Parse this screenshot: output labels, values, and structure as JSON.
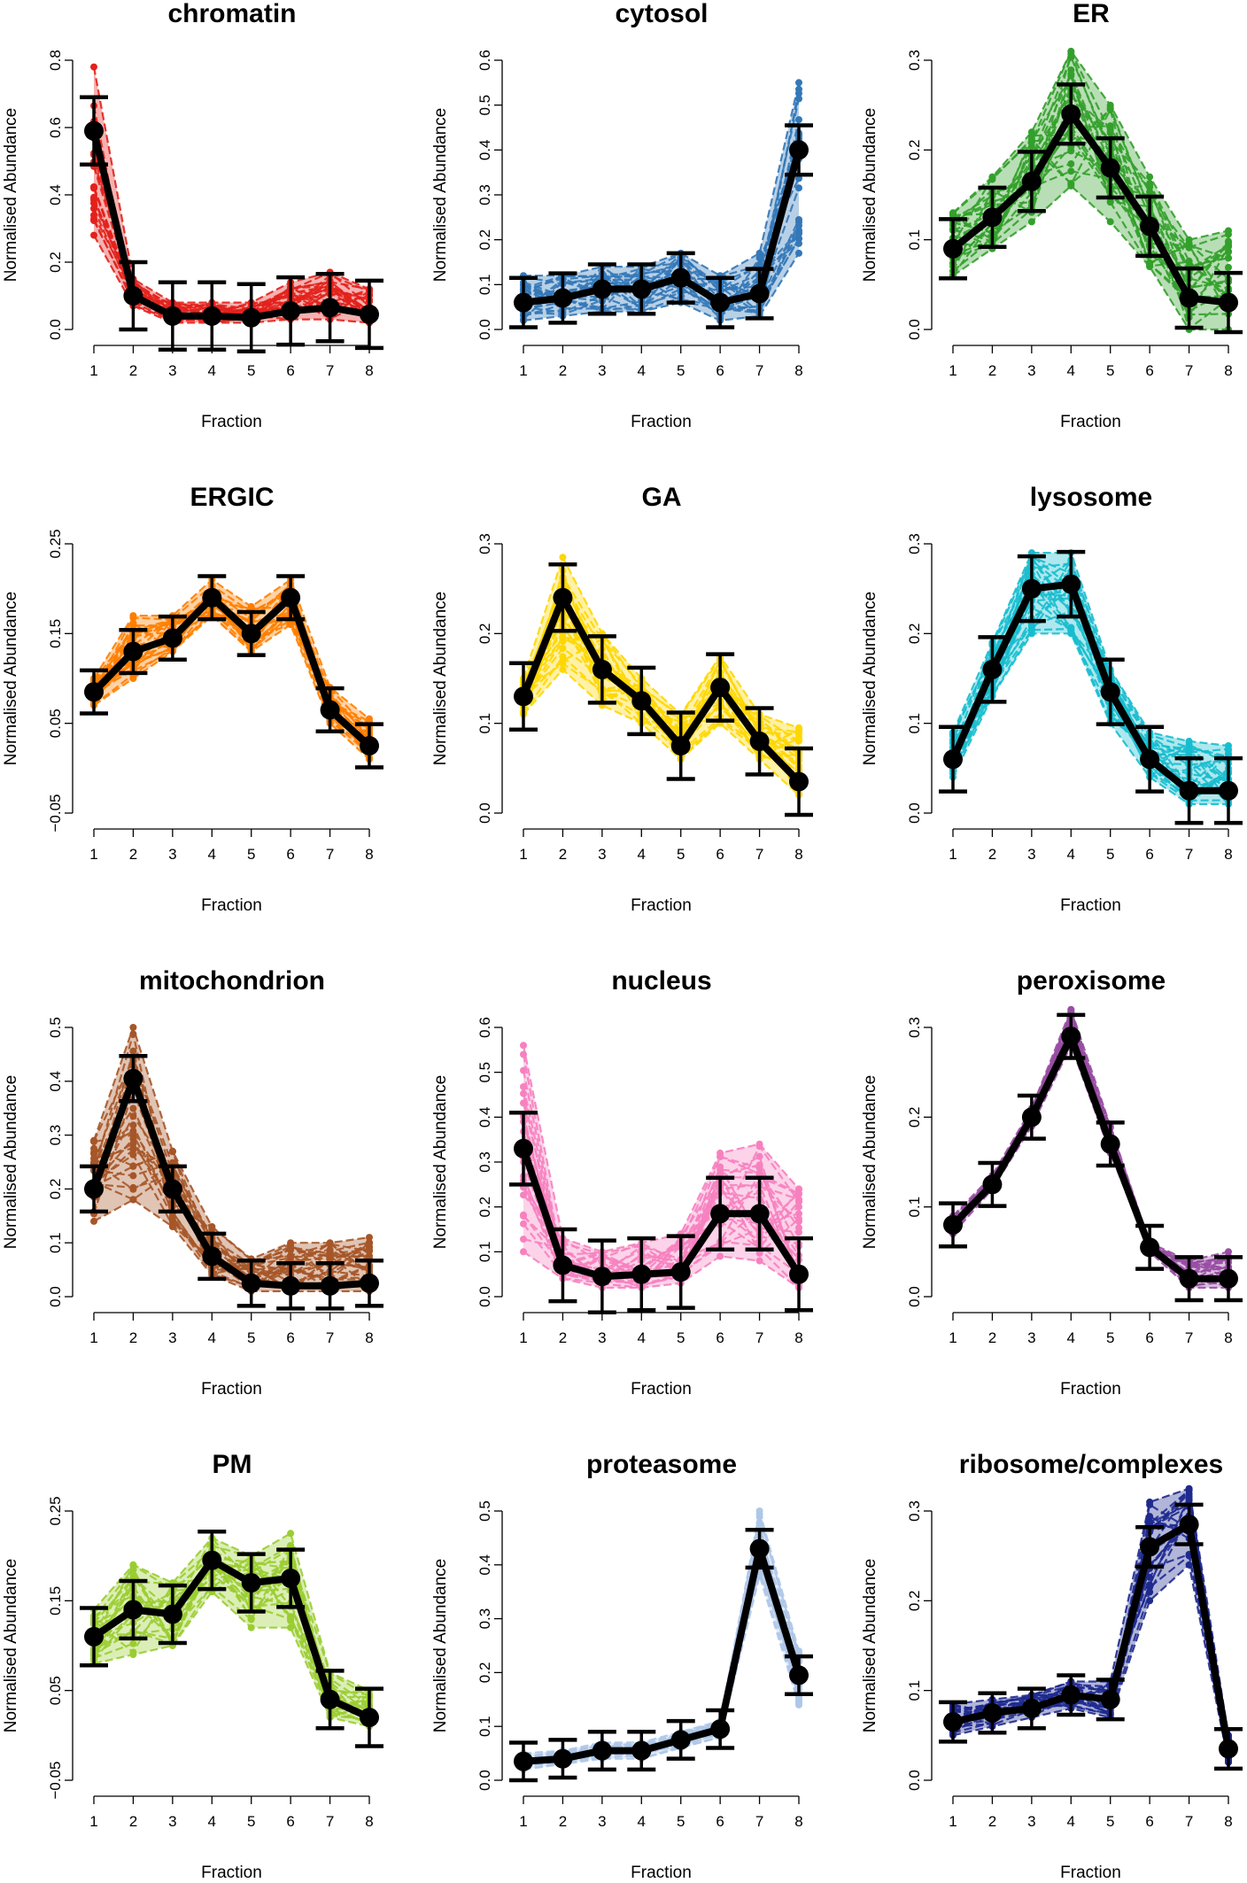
{
  "figure": {
    "xlabel": "Fraction",
    "ylabel": "Normalised Abundance",
    "x_ticks": [
      "1",
      "2",
      "3",
      "4",
      "5",
      "6",
      "7",
      "8"
    ]
  },
  "chart_data": [
    {
      "type": "line",
      "title": "chromatin",
      "color": "#e3211c",
      "ylim": [
        0,
        0.8
      ],
      "yticks": [
        0,
        0.2,
        0.4,
        0.6,
        0.8
      ],
      "x": [
        1,
        2,
        3,
        4,
        5,
        6,
        7,
        8
      ],
      "mean": [
        0.59,
        0.1,
        0.04,
        0.04,
        0.035,
        0.055,
        0.065,
        0.045
      ],
      "sd": [
        0.1,
        0.1,
        0.1,
        0.1,
        0.1,
        0.1,
        0.1,
        0.1
      ],
      "profiles_lo": [
        0.28,
        0.07,
        0.02,
        0.02,
        0.02,
        0.03,
        0.03,
        0.02
      ],
      "profiles_hi": [
        0.78,
        0.15,
        0.08,
        0.08,
        0.08,
        0.14,
        0.17,
        0.12
      ]
    },
    {
      "type": "line",
      "title": "cytosol",
      "color": "#3478b8",
      "ylim": [
        0,
        0.6
      ],
      "yticks": [
        0,
        0.1,
        0.2,
        0.3,
        0.4,
        0.5,
        0.6
      ],
      "x": [
        1,
        2,
        3,
        4,
        5,
        6,
        7,
        8
      ],
      "mean": [
        0.06,
        0.07,
        0.09,
        0.09,
        0.115,
        0.06,
        0.08,
        0.4
      ],
      "sd": [
        0.055,
        0.055,
        0.055,
        0.055,
        0.055,
        0.055,
        0.055,
        0.055
      ],
      "profiles_lo": [
        0.02,
        0.03,
        0.04,
        0.04,
        0.06,
        0.02,
        0.03,
        0.17
      ],
      "profiles_hi": [
        0.12,
        0.12,
        0.14,
        0.14,
        0.17,
        0.12,
        0.17,
        0.55
      ]
    },
    {
      "type": "line",
      "title": "ER",
      "color": "#33a02c",
      "ylim": [
        0,
        0.3
      ],
      "yticks": [
        0,
        0.1,
        0.2,
        0.3
      ],
      "x": [
        1,
        2,
        3,
        4,
        5,
        6,
        7,
        8
      ],
      "mean": [
        0.09,
        0.125,
        0.165,
        0.24,
        0.18,
        0.115,
        0.035,
        0.03
      ],
      "sd": [
        0.033,
        0.033,
        0.033,
        0.033,
        0.033,
        0.033,
        0.033,
        0.033
      ],
      "profiles_lo": [
        0.06,
        0.09,
        0.12,
        0.16,
        0.12,
        0.07,
        0.0,
        0.0
      ],
      "profiles_hi": [
        0.13,
        0.17,
        0.22,
        0.31,
        0.25,
        0.17,
        0.1,
        0.11
      ]
    },
    {
      "type": "line",
      "title": "ERGIC",
      "color": "#ff7f00",
      "ylim": [
        -0.05,
        0.25
      ],
      "yticks": [
        -0.05,
        0.05,
        0.15,
        0.25
      ],
      "x": [
        1,
        2,
        3,
        4,
        5,
        6,
        7,
        8
      ],
      "mean": [
        0.085,
        0.13,
        0.145,
        0.19,
        0.15,
        0.19,
        0.065,
        0.025
      ],
      "sd": [
        0.024,
        0.024,
        0.024,
        0.024,
        0.024,
        0.024,
        0.024,
        0.024
      ],
      "profiles_lo": [
        0.07,
        0.1,
        0.13,
        0.17,
        0.13,
        0.16,
        0.05,
        0.01
      ],
      "profiles_hi": [
        0.1,
        0.17,
        0.17,
        0.21,
        0.18,
        0.21,
        0.09,
        0.055
      ]
    },
    {
      "type": "line",
      "title": "GA",
      "color": "#ffd700",
      "ylim": [
        0,
        0.3
      ],
      "yticks": [
        0,
        0.1,
        0.2,
        0.3
      ],
      "x": [
        1,
        2,
        3,
        4,
        5,
        6,
        7,
        8
      ],
      "mean": [
        0.13,
        0.24,
        0.16,
        0.125,
        0.075,
        0.14,
        0.08,
        0.035
      ],
      "sd": [
        0.037,
        0.037,
        0.037,
        0.037,
        0.037,
        0.037,
        0.037,
        0.037
      ],
      "profiles_lo": [
        0.11,
        0.16,
        0.12,
        0.1,
        0.06,
        0.1,
        0.06,
        0.02
      ],
      "profiles_hi": [
        0.15,
        0.285,
        0.2,
        0.15,
        0.11,
        0.175,
        0.11,
        0.095
      ]
    },
    {
      "type": "line",
      "title": "lysosome",
      "color": "#17becf",
      "ylim": [
        0,
        0.3
      ],
      "yticks": [
        0,
        0.1,
        0.2,
        0.3
      ],
      "x": [
        1,
        2,
        3,
        4,
        5,
        6,
        7,
        8
      ],
      "mean": [
        0.06,
        0.16,
        0.25,
        0.255,
        0.135,
        0.06,
        0.025,
        0.025
      ],
      "sd": [
        0.036,
        0.036,
        0.036,
        0.036,
        0.036,
        0.036,
        0.036,
        0.036
      ],
      "profiles_lo": [
        0.04,
        0.13,
        0.2,
        0.2,
        0.1,
        0.04,
        0.01,
        0.01
      ],
      "profiles_hi": [
        0.09,
        0.19,
        0.29,
        0.29,
        0.16,
        0.09,
        0.08,
        0.075
      ]
    },
    {
      "type": "line",
      "title": "mitochondrion",
      "color": "#a65628",
      "ylim": [
        0,
        0.5
      ],
      "yticks": [
        0,
        0.1,
        0.2,
        0.3,
        0.4,
        0.5
      ],
      "x": [
        1,
        2,
        3,
        4,
        5,
        6,
        7,
        8
      ],
      "mean": [
        0.2,
        0.405,
        0.2,
        0.075,
        0.025,
        0.02,
        0.02,
        0.025
      ],
      "sd": [
        0.042,
        0.042,
        0.042,
        0.042,
        0.042,
        0.042,
        0.042,
        0.042
      ],
      "profiles_lo": [
        0.14,
        0.18,
        0.13,
        0.04,
        0.01,
        0.01,
        0.01,
        0.01
      ],
      "profiles_hi": [
        0.29,
        0.5,
        0.27,
        0.13,
        0.07,
        0.1,
        0.1,
        0.11
      ]
    },
    {
      "type": "line",
      "title": "nucleus",
      "color": "#f781bf",
      "ylim": [
        0,
        0.6
      ],
      "yticks": [
        0,
        0.1,
        0.2,
        0.3,
        0.4,
        0.5,
        0.6
      ],
      "x": [
        1,
        2,
        3,
        4,
        5,
        6,
        7,
        8
      ],
      "mean": [
        0.33,
        0.07,
        0.045,
        0.05,
        0.055,
        0.185,
        0.185,
        0.05
      ],
      "sd": [
        0.08,
        0.08,
        0.08,
        0.08,
        0.08,
        0.08,
        0.08,
        0.08
      ],
      "profiles_lo": [
        0.1,
        0.04,
        0.02,
        0.02,
        0.03,
        0.09,
        0.08,
        0.02
      ],
      "profiles_hi": [
        0.56,
        0.13,
        0.1,
        0.12,
        0.14,
        0.32,
        0.34,
        0.24
      ]
    },
    {
      "type": "line",
      "title": "peroxisome",
      "color": "#984ea3",
      "ylim": [
        0,
        0.3
      ],
      "yticks": [
        0,
        0.1,
        0.2,
        0.3
      ],
      "x": [
        1,
        2,
        3,
        4,
        5,
        6,
        7,
        8
      ],
      "mean": [
        0.08,
        0.125,
        0.2,
        0.29,
        0.17,
        0.055,
        0.02,
        0.02
      ],
      "sd": [
        0.024,
        0.024,
        0.024,
        0.024,
        0.024,
        0.024,
        0.024,
        0.024
      ],
      "profiles_lo": [
        0.07,
        0.12,
        0.19,
        0.28,
        0.16,
        0.05,
        0.01,
        0.01
      ],
      "profiles_hi": [
        0.09,
        0.135,
        0.21,
        0.32,
        0.19,
        0.06,
        0.04,
        0.05
      ]
    },
    {
      "type": "line",
      "title": "PM",
      "color": "#9acd32",
      "ylim": [
        -0.05,
        0.25
      ],
      "yticks": [
        -0.05,
        0.05,
        0.15,
        0.25
      ],
      "x": [
        1,
        2,
        3,
        4,
        5,
        6,
        7,
        8
      ],
      "mean": [
        0.11,
        0.14,
        0.135,
        0.195,
        0.17,
        0.175,
        0.04,
        0.02
      ],
      "sd": [
        0.032,
        0.032,
        0.032,
        0.032,
        0.032,
        0.032,
        0.032,
        0.032
      ],
      "profiles_lo": [
        0.08,
        0.09,
        0.1,
        0.16,
        0.12,
        0.12,
        0.02,
        0.01
      ],
      "profiles_hi": [
        0.14,
        0.19,
        0.17,
        0.22,
        0.2,
        0.225,
        0.07,
        0.05
      ]
    },
    {
      "type": "line",
      "title": "proteasome",
      "color": "#aec7e8",
      "ylim": [
        0,
        0.5
      ],
      "yticks": [
        0,
        0.1,
        0.2,
        0.3,
        0.4,
        0.5
      ],
      "x": [
        1,
        2,
        3,
        4,
        5,
        6,
        7,
        8
      ],
      "mean": [
        0.035,
        0.04,
        0.055,
        0.055,
        0.075,
        0.095,
        0.43,
        0.195
      ],
      "sd": [
        0.035,
        0.035,
        0.035,
        0.035,
        0.035,
        0.035,
        0.035,
        0.035
      ],
      "profiles_lo": [
        0.02,
        0.03,
        0.04,
        0.04,
        0.06,
        0.08,
        0.38,
        0.14
      ],
      "profiles_hi": [
        0.05,
        0.055,
        0.07,
        0.07,
        0.09,
        0.11,
        0.5,
        0.24
      ]
    },
    {
      "type": "line",
      "title": "ribosome/complexes",
      "color": "#1f2a8f",
      "ylim": [
        0,
        0.3
      ],
      "yticks": [
        0,
        0.1,
        0.2,
        0.3
      ],
      "x": [
        1,
        2,
        3,
        4,
        5,
        6,
        7,
        8
      ],
      "mean": [
        0.065,
        0.075,
        0.08,
        0.095,
        0.09,
        0.26,
        0.285,
        0.035
      ],
      "sd": [
        0.022,
        0.022,
        0.022,
        0.022,
        0.022,
        0.022,
        0.022,
        0.022
      ],
      "profiles_lo": [
        0.05,
        0.06,
        0.07,
        0.08,
        0.07,
        0.2,
        0.24,
        0.02
      ],
      "profiles_hi": [
        0.085,
        0.09,
        0.095,
        0.11,
        0.11,
        0.31,
        0.325,
        0.05
      ]
    }
  ]
}
